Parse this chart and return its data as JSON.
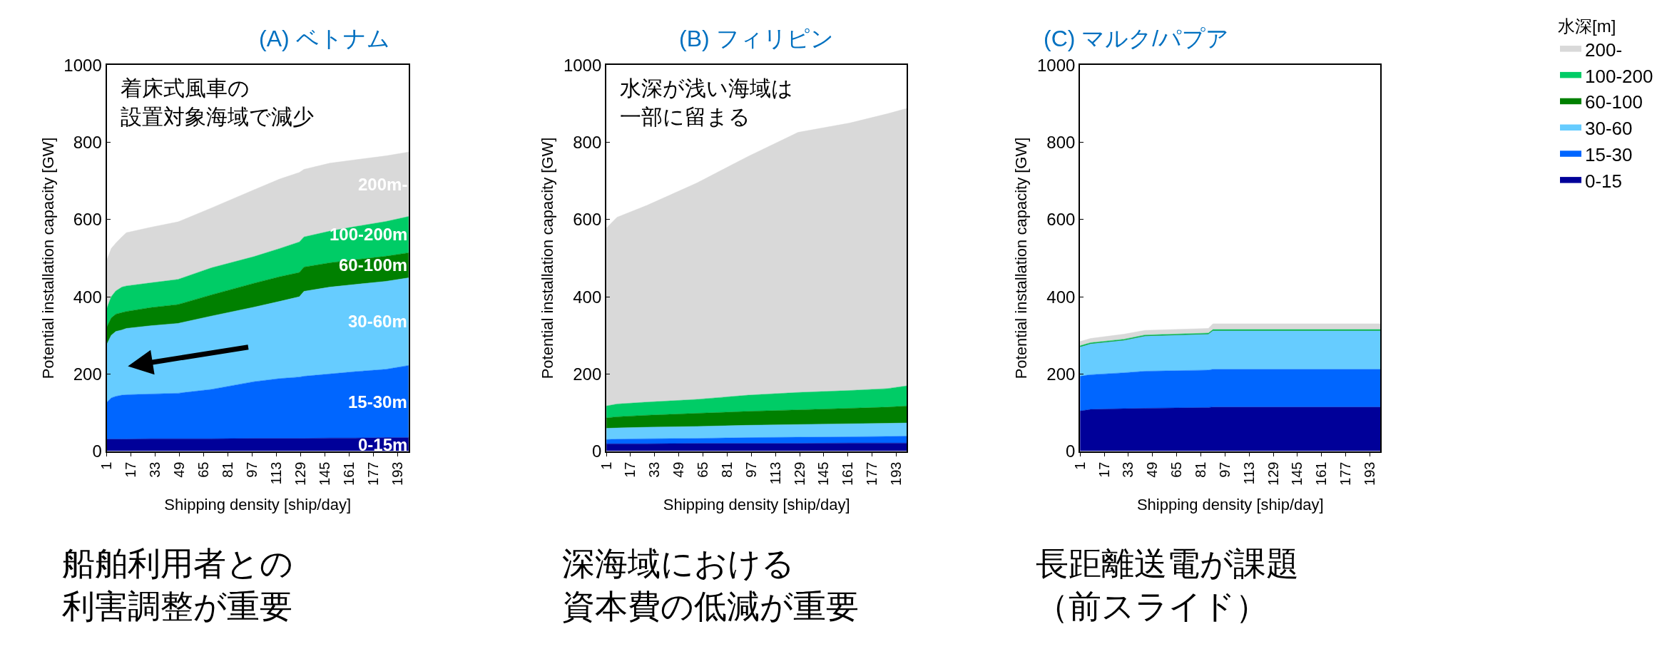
{
  "chart_data": [
    {
      "type": "area",
      "title": "(A) ベトナム",
      "xlabel": "Shipping density [ship/day]",
      "ylabel": "Potential installation capacity [GW]",
      "stacked": true,
      "legend": false,
      "x": [
        1,
        4,
        7,
        11,
        14,
        30,
        48,
        70,
        98,
        115,
        128,
        131,
        148,
        165,
        185,
        200
      ],
      "xlim": [
        1,
        200
      ],
      "xticks": [
        1,
        17,
        33,
        49,
        65,
        81,
        97,
        113,
        129,
        145,
        161,
        177,
        193
      ],
      "ylim": [
        0,
        1000
      ],
      "yticks": [
        0,
        200,
        400,
        600,
        800,
        1000
      ],
      "annotations": [
        "着床式風車の",
        "設置対象海域で減少",
        "船舶利用者との",
        "利害調整が重要"
      ],
      "series": [
        {
          "name": "0-15m",
          "color": "#000099",
          "values": [
            31,
            31,
            31,
            31,
            31,
            32,
            32,
            32,
            33,
            33,
            33,
            33,
            34,
            34,
            35,
            35
          ]
        },
        {
          "name": "15-30m",
          "color": "#0066ff",
          "values": [
            95,
            107,
            111,
            114,
            115,
            116,
            118,
            128,
            147,
            155,
            159,
            161,
            166,
            172,
            177,
            187
          ]
        },
        {
          "name": "30-60m",
          "color": "#66ccff",
          "values": [
            150,
            162,
            168,
            169,
            172,
            177,
            181,
            190,
            193,
            200,
            208,
            220,
            225,
            226,
            228,
            227
          ]
        },
        {
          "name": "60-100m",
          "color": "#008000",
          "values": [
            45,
            45,
            45,
            45,
            44,
            47,
            49,
            55,
            62,
            64,
            63,
            63,
            63,
            64,
            65,
            65
          ]
        },
        {
          "name": "100-200m",
          "color": "#00cc66",
          "values": [
            48,
            55,
            60,
            66,
            66,
            64,
            65,
            70,
            69,
            73,
            79,
            78,
            82,
            86,
            90,
            94
          ]
        },
        {
          "name": "200m-",
          "color": "#d9d9d9",
          "values": [
            125,
            125,
            124,
            130,
            138,
            144,
            149,
            155,
            173,
            180,
            180,
            175,
            176,
            173,
            170,
            167
          ]
        }
      ]
    },
    {
      "type": "area",
      "title": "(B) フィリピン",
      "xlabel": "Shipping density [ship/day]",
      "ylabel": "Potential installation capacity [GW]",
      "stacked": true,
      "legend": false,
      "x": [
        1,
        8,
        28,
        61,
        95,
        128,
        162,
        187,
        200
      ],
      "xlim": [
        1,
        200
      ],
      "xticks": [
        1,
        17,
        33,
        49,
        65,
        81,
        97,
        113,
        129,
        145,
        161,
        177,
        193
      ],
      "ylim": [
        0,
        1000
      ],
      "yticks": [
        0,
        200,
        400,
        600,
        800,
        1000
      ],
      "annotations": [
        "水深が浅い海域は",
        "一部に留まる",
        "深海域における",
        "資本費の低減が重要"
      ],
      "series": [
        {
          "color": "#000099",
          "values": [
            19,
            19,
            19,
            20,
            20,
            20,
            21,
            21,
            21
          ]
        },
        {
          "color": "#0066ff",
          "values": [
            11,
            12,
            13,
            13,
            15,
            16,
            16,
            17,
            18
          ]
        },
        {
          "color": "#66ccff",
          "values": [
            29,
            29,
            30,
            31,
            32,
            33,
            34,
            34,
            34
          ]
        },
        {
          "color": "#008000",
          "values": [
            27,
            29,
            31,
            34,
            36,
            38,
            40,
            42,
            44
          ]
        },
        {
          "color": "#00cc66",
          "values": [
            31,
            33,
            34,
            36,
            42,
            45,
            46,
            48,
            52
          ]
        },
        {
          "color": "#d9d9d9",
          "values": [
            461,
            484,
            510,
            561,
            619,
            674,
            693,
            712,
            719
          ]
        }
      ]
    },
    {
      "type": "area",
      "title": "(C) マルク/パプア",
      "xlabel": "Shipping density [ship/day]",
      "ylabel": "Potential installation capacity [GW]",
      "stacked": true,
      "legend": "right",
      "legend_title": "水深[m]",
      "x": [
        1,
        8,
        30,
        44,
        86,
        89,
        200
      ],
      "xlim": [
        1,
        200
      ],
      "xticks": [
        1,
        17,
        33,
        49,
        65,
        81,
        97,
        113,
        129,
        145,
        161,
        177,
        193
      ],
      "ylim": [
        0,
        1000
      ],
      "yticks": [
        0,
        200,
        400,
        600,
        800,
        1000
      ],
      "annotations": [
        null,
        null,
        "長距離送電が課題",
        "（前スライド）"
      ],
      "series": [
        {
          "name": "0-15",
          "color": "#000099",
          "values": [
            104,
            108,
            110,
            111,
            113,
            114,
            114
          ]
        },
        {
          "name": "15-30",
          "color": "#0066ff",
          "values": [
            90,
            90,
            93,
            96,
            97,
            98,
            98
          ]
        },
        {
          "name": "30-60",
          "color": "#66ccff",
          "values": [
            76,
            80,
            84,
            91,
            93,
            100,
            100
          ]
        },
        {
          "name": "60-100",
          "color": "#008000",
          "values": [
            1,
            1,
            1,
            1,
            1,
            1,
            1
          ]
        },
        {
          "name": "100-200",
          "color": "#00cc66",
          "values": [
            2,
            2,
            2,
            2,
            2,
            2,
            2
          ]
        },
        {
          "name": "200-",
          "color": "#d9d9d9",
          "values": [
            11,
            11,
            13,
            12,
            12,
            15,
            15
          ]
        }
      ]
    }
  ]
}
